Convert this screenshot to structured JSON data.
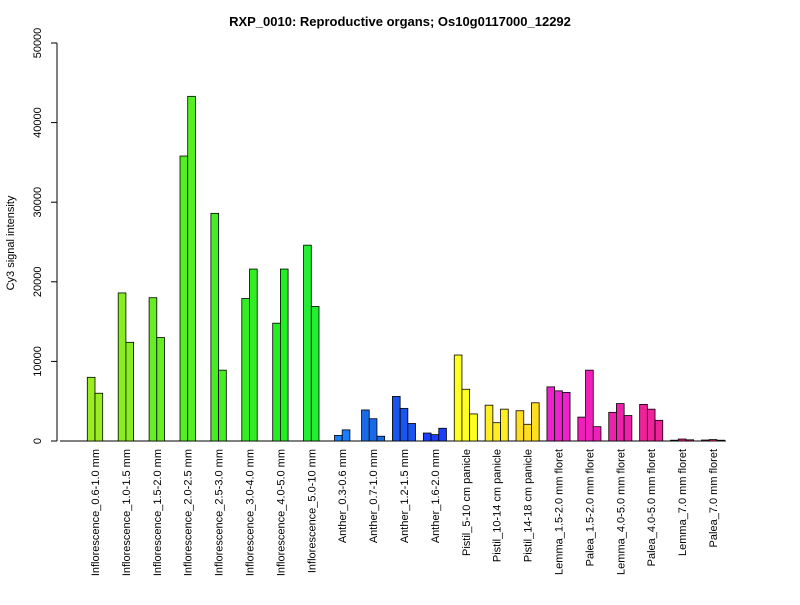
{
  "chart_data": {
    "type": "bar",
    "title": "RXP_0010: Reproductive organs; Os10g0117000_12292",
    "xlabel": "",
    "ylabel": "Cy3 signal intensity",
    "ylim": [
      0,
      50000
    ],
    "yticks": [
      0,
      10000,
      20000,
      30000,
      40000,
      50000
    ],
    "grid": false,
    "legend": "none",
    "groups": [
      {
        "label": "Inflorescence_0.6-1.0 mm",
        "color": "#99ee22",
        "values": [
          8000,
          6000
        ]
      },
      {
        "label": "Inflorescence_1.0-1.5 mm",
        "color": "#88ee22",
        "values": [
          18600,
          12400
        ]
      },
      {
        "label": "Inflorescence_1.5-2.0 mm",
        "color": "#66ee22",
        "values": [
          18000,
          13000
        ]
      },
      {
        "label": "Inflorescence_2.0-2.5 mm",
        "color": "#55ee22",
        "values": [
          35800,
          43300
        ]
      },
      {
        "label": "Inflorescence_2.5-3.0 mm",
        "color": "#44ee22",
        "values": [
          28600,
          8900
        ]
      },
      {
        "label": "Inflorescence_3.0-4.0 mm",
        "color": "#33ee22",
        "values": [
          17900,
          21600
        ]
      },
      {
        "label": "Inflorescence_4.0-5.0 mm",
        "color": "#22ee22",
        "values": [
          14800,
          21600
        ]
      },
      {
        "label": "Inflorescence_5.0-10 mm",
        "color": "#22ee33",
        "values": [
          24600,
          16900
        ]
      },
      {
        "label": "Anther_0.3-0.6 mm",
        "color": "#1a7fff",
        "values": [
          700,
          1400
        ]
      },
      {
        "label": "Anther_0.7-1.0 mm",
        "color": "#1a6ae8",
        "values": [
          3900,
          2800,
          600
        ]
      },
      {
        "label": "Anther_1.2-1.5 mm",
        "color": "#1a55ee",
        "values": [
          5600,
          4100,
          2200
        ]
      },
      {
        "label": "Anther_1.6-2.0 mm",
        "color": "#1a3fff",
        "values": [
          1000,
          800,
          1600
        ]
      },
      {
        "label": "Pistil_5-10 cm panicle",
        "color": "#ffff22",
        "values": [
          10800,
          6500,
          3400
        ]
      },
      {
        "label": "Pistil_10-14 cm panicle",
        "color": "#ffee22",
        "values": [
          4500,
          2300,
          4000
        ]
      },
      {
        "label": "Pistil_14-18 cm panicle",
        "color": "#ffdd22",
        "values": [
          3800,
          2100,
          4800
        ]
      },
      {
        "label": "Lemma_1.5-2.0 mm floret",
        "color": "#ee22cc",
        "values": [
          6800,
          6300,
          6100
        ]
      },
      {
        "label": "Palea_1.5-2.0 mm floret",
        "color": "#ee22bb",
        "values": [
          3000,
          8900,
          1800
        ]
      },
      {
        "label": "Lemma_4.0-5.0 mm floret",
        "color": "#ee22aa",
        "values": [
          3600,
          4700,
          3200
        ]
      },
      {
        "label": "Palea_4.0-5.0 mm floret",
        "color": "#ee2299",
        "values": [
          4600,
          4000,
          2600
        ]
      },
      {
        "label": "Lemma_7.0 mm floret",
        "color": "#ee2288",
        "values": [
          100,
          250,
          150
        ]
      },
      {
        "label": "Palea_7.0 mm floret",
        "color": "#ee2277",
        "values": [
          120,
          180,
          100
        ]
      }
    ]
  }
}
